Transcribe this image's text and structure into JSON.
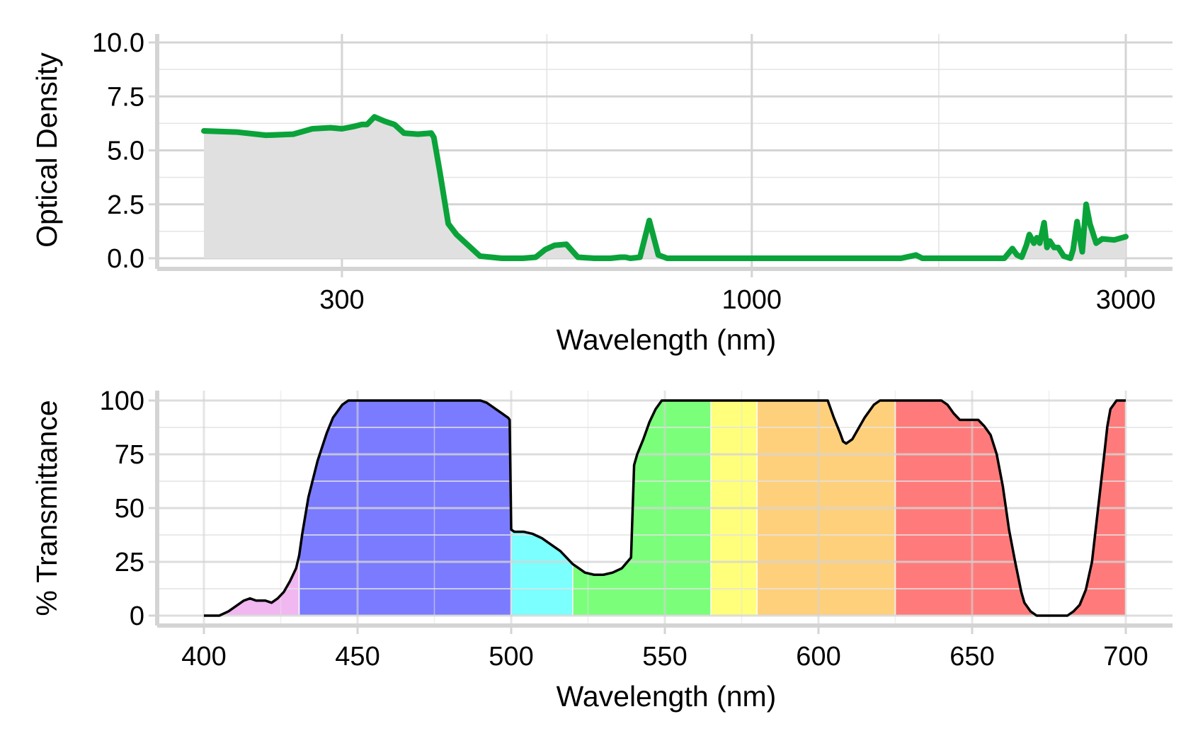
{
  "chart_data": [
    {
      "type": "area",
      "xlabel": "Wavelength (nm)",
      "ylabel": "Optical Density",
      "x_scale": "log",
      "xlim": [
        190,
        3000
      ],
      "ylim": [
        0,
        10
      ],
      "x_ticks": [
        300,
        1000,
        3000
      ],
      "y_ticks": [
        0.0,
        2.5,
        5.0,
        7.5,
        10.0
      ],
      "y_tick_labels": [
        "0.0",
        "2.5",
        "5.0",
        "7.5",
        "10.0"
      ],
      "line_color": "#0aa33a",
      "fill_color": "#e0e0e0",
      "grid": true,
      "series": [
        {
          "x": [
            200,
            220,
            240,
            260,
            275,
            290,
            300,
            310,
            318,
            323,
            330,
            340,
            350,
            360,
            375,
            390,
            393,
            400,
            410,
            420,
            450,
            480,
            510,
            530,
            545,
            560,
            580,
            600,
            630,
            660,
            680,
            690,
            700,
            720,
            740,
            760,
            780,
            790,
            800,
            830,
            900,
            1000,
            1200,
            1400,
            1550,
            1620,
            1650,
            1700,
            1750,
            1900,
            2000,
            2100,
            2150,
            2180,
            2210,
            2240,
            2260,
            2290,
            2310,
            2330,
            2360,
            2380,
            2400,
            2430,
            2460,
            2500,
            2550,
            2570,
            2600,
            2640,
            2670,
            2700,
            2750,
            2800,
            2900,
            3000
          ],
          "y": [
            5.9,
            5.85,
            5.7,
            5.75,
            6.0,
            6.05,
            6.0,
            6.1,
            6.2,
            6.2,
            6.55,
            6.35,
            6.2,
            5.8,
            5.75,
            5.8,
            5.6,
            4.0,
            1.6,
            1.1,
            0.1,
            0.0,
            0.0,
            0.05,
            0.4,
            0.6,
            0.65,
            0.05,
            0.0,
            0.0,
            0.05,
            0.05,
            0.0,
            0.05,
            1.75,
            0.15,
            0.0,
            0.0,
            0.0,
            0.0,
            0.0,
            0.0,
            0.0,
            0.0,
            0.0,
            0.15,
            0.0,
            0.0,
            0.0,
            0.0,
            0.0,
            0.0,
            0.45,
            0.15,
            0.05,
            0.6,
            1.1,
            0.7,
            0.95,
            0.7,
            1.65,
            0.5,
            0.8,
            0.5,
            0.5,
            0.1,
            0.0,
            0.4,
            1.7,
            0.3,
            2.5,
            1.6,
            0.7,
            0.9,
            0.85,
            1.0
          ]
        }
      ]
    },
    {
      "type": "area",
      "xlabel": "Wavelength (nm)",
      "ylabel": "% Transmittance",
      "xlim": [
        400,
        700
      ],
      "ylim": [
        0,
        100
      ],
      "x_ticks": [
        400,
        450,
        500,
        550,
        600,
        650,
        700
      ],
      "y_ticks": [
        0,
        25,
        50,
        75,
        100
      ],
      "line_color": "#000000",
      "grid": true,
      "bands": [
        {
          "from": 400,
          "to": 431,
          "color": "#eeaaee"
        },
        {
          "from": 431,
          "to": 500,
          "color": "#6464ff"
        },
        {
          "from": 500,
          "to": 520,
          "color": "#64ffff"
        },
        {
          "from": 520,
          "to": 565,
          "color": "#64ff64"
        },
        {
          "from": 565,
          "to": 580,
          "color": "#ffff64"
        },
        {
          "from": 580,
          "to": 625,
          "color": "#ffc864"
        },
        {
          "from": 625,
          "to": 700,
          "color": "#ff6464"
        }
      ],
      "series": [
        {
          "x": [
            400,
            403,
            405,
            408,
            411,
            413,
            415,
            417,
            420,
            422,
            424,
            426,
            428,
            430,
            431,
            432,
            434,
            437,
            440,
            442,
            445,
            447,
            450,
            460,
            470,
            480,
            490,
            492,
            494,
            495,
            497,
            498,
            499,
            499.5,
            500,
            501,
            504,
            507,
            510,
            513,
            516,
            518,
            520,
            522,
            524,
            527,
            530,
            533,
            536,
            539,
            540,
            541,
            543,
            545,
            547,
            549,
            552,
            560,
            565,
            570,
            580,
            590,
            600,
            603,
            605,
            607,
            608,
            609,
            611,
            613,
            615,
            618,
            620,
            625,
            630,
            635,
            640,
            642,
            644,
            646,
            648,
            650,
            652,
            654,
            656,
            658,
            660,
            662,
            664,
            666,
            667,
            669,
            671,
            673,
            675,
            677,
            679,
            681,
            683,
            685,
            687,
            689,
            691,
            693,
            694,
            695,
            697,
            700
          ],
          "y": [
            0,
            0,
            0,
            2,
            5,
            7,
            8,
            7,
            7,
            6,
            8,
            11,
            16,
            22,
            28,
            38,
            55,
            72,
            85,
            92,
            98,
            100,
            100,
            100,
            100,
            100,
            100,
            99,
            97,
            96,
            94,
            93,
            92,
            91,
            40,
            39,
            39,
            38,
            36,
            33,
            30,
            27,
            24,
            22,
            20,
            19,
            19,
            20,
            22,
            27,
            70,
            75,
            82,
            90,
            96,
            100,
            100,
            100,
            100,
            100,
            100,
            100,
            100,
            100,
            92,
            85,
            81,
            80,
            82,
            87,
            92,
            98,
            100,
            100,
            100,
            100,
            100,
            98,
            94,
            91,
            91,
            91,
            91,
            88,
            84,
            75,
            60,
            40,
            25,
            11,
            6,
            2,
            0,
            0,
            0,
            0,
            0,
            0,
            2,
            5,
            12,
            25,
            50,
            75,
            88,
            96,
            100,
            100
          ]
        }
      ]
    }
  ]
}
